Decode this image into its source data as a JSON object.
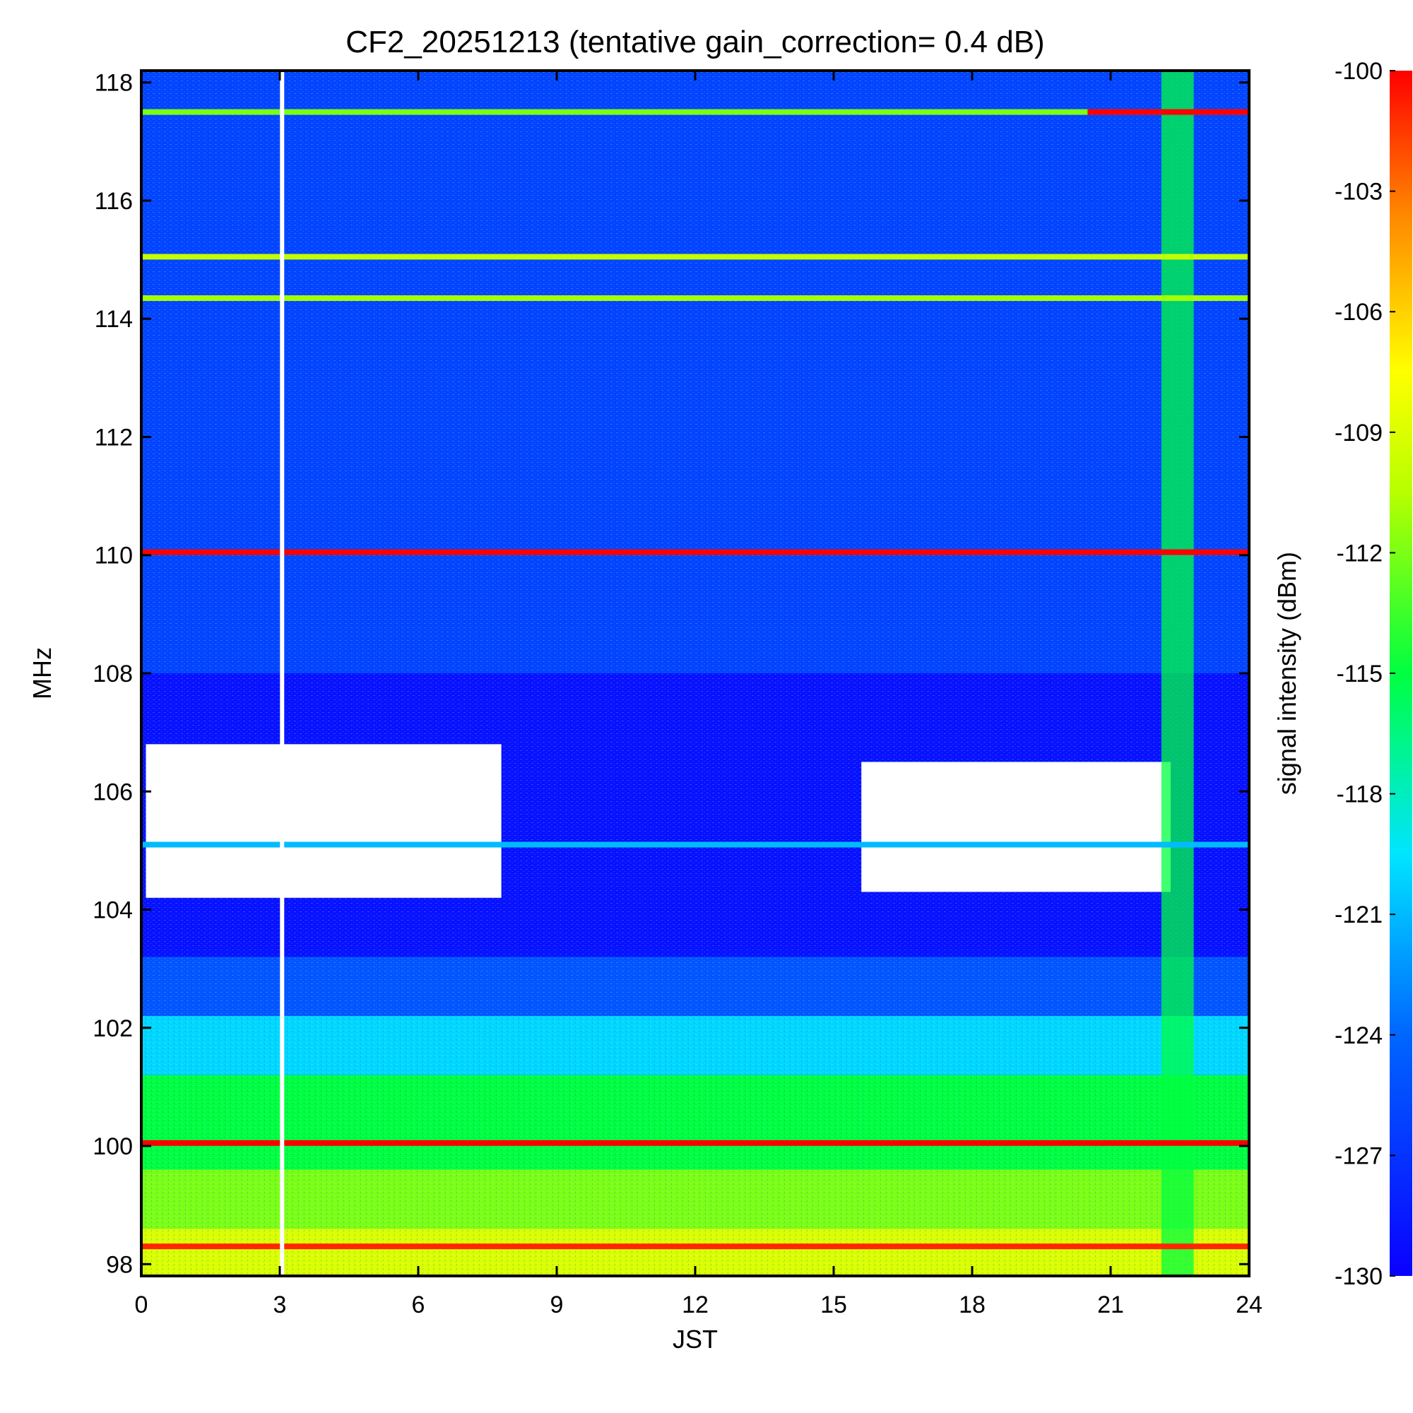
{
  "chart_data": {
    "type": "heatmap",
    "title": "CF2_20251213 (tentative gain_correction=  0.4 dB)",
    "xlabel": "JST",
    "ylabel": "MHz",
    "colorbar_label": "signal intensity (dBm)",
    "xlim": [
      0,
      24
    ],
    "ylim": [
      97.8,
      118.2
    ],
    "color_range": [
      -130,
      -100
    ],
    "x_ticks": [
      {
        "value": 0,
        "label": "0"
      },
      {
        "value": 3,
        "label": "3"
      },
      {
        "value": 6,
        "label": "6"
      },
      {
        "value": 9,
        "label": "9"
      },
      {
        "value": 12,
        "label": "12"
      },
      {
        "value": 15,
        "label": "15"
      },
      {
        "value": 18,
        "label": "18"
      },
      {
        "value": 21,
        "label": "21"
      },
      {
        "value": 24,
        "label": "24"
      }
    ],
    "y_ticks": [
      {
        "value": 98,
        "label": "98"
      },
      {
        "value": 100,
        "label": "100"
      },
      {
        "value": 102,
        "label": "102"
      },
      {
        "value": 104,
        "label": "104"
      },
      {
        "value": 106,
        "label": "106"
      },
      {
        "value": 108,
        "label": "108"
      },
      {
        "value": 110,
        "label": "110"
      },
      {
        "value": 112,
        "label": "112"
      },
      {
        "value": 114,
        "label": "114"
      },
      {
        "value": 116,
        "label": "116"
      },
      {
        "value": 118,
        "label": "118"
      }
    ],
    "colorbar_ticks": [
      {
        "value": -100,
        "label": "-100"
      },
      {
        "value": -103,
        "label": "-103"
      },
      {
        "value": -106,
        "label": "-106"
      },
      {
        "value": -109,
        "label": "-109"
      },
      {
        "value": -112,
        "label": "-112"
      },
      {
        "value": -115,
        "label": "-115"
      },
      {
        "value": -118,
        "label": "-118"
      },
      {
        "value": -121,
        "label": "-121"
      },
      {
        "value": -124,
        "label": "-124"
      },
      {
        "value": -127,
        "label": "-127"
      },
      {
        "value": -130,
        "label": "-130"
      }
    ],
    "background_gradient": [
      {
        "freq_from": 97.8,
        "freq_to": 98.6,
        "dbm": -109
      },
      {
        "freq_from": 98.6,
        "freq_to": 99.6,
        "dbm": -112
      },
      {
        "freq_from": 99.6,
        "freq_to": 101.2,
        "dbm": -115
      },
      {
        "freq_from": 101.2,
        "freq_to": 102.2,
        "dbm": -120
      },
      {
        "freq_from": 102.2,
        "freq_to": 103.2,
        "dbm": -125
      },
      {
        "freq_from": 103.2,
        "freq_to": 104.0,
        "dbm": -129
      },
      {
        "freq_from": 104.0,
        "freq_to": 108.0,
        "dbm": -129
      },
      {
        "freq_from": 108.0,
        "freq_to": 118.2,
        "dbm": -126
      }
    ],
    "saturated_regions": [
      {
        "freq_from": 104.2,
        "freq_to": 106.8,
        "t_from": 0.1,
        "t_to": 7.8,
        "note": "white (out of range)"
      },
      {
        "freq_from": 104.3,
        "freq_to": 106.5,
        "t_from": 15.6,
        "t_to": 22.3,
        "note": "white (out of range)"
      }
    ],
    "persistent_lines": [
      {
        "freq": 117.5,
        "dbm": -112,
        "peak_dbm": -100,
        "peak_t_from": 20.5,
        "peak_t_to": 24
      },
      {
        "freq": 115.05,
        "dbm": -110
      },
      {
        "freq": 114.35,
        "dbm": -111
      },
      {
        "freq": 110.05,
        "dbm": -100
      },
      {
        "freq": 105.1,
        "dbm": -121
      },
      {
        "freq": 100.05,
        "dbm": -100
      },
      {
        "freq": 98.3,
        "dbm": -101
      }
    ],
    "broadband_events": [
      {
        "t_from": 22.1,
        "t_to": 22.8,
        "dbm": -115,
        "note": "vertical green band"
      }
    ],
    "data_gaps": [
      {
        "t": 3.05,
        "note": "white vertical gap"
      }
    ]
  }
}
